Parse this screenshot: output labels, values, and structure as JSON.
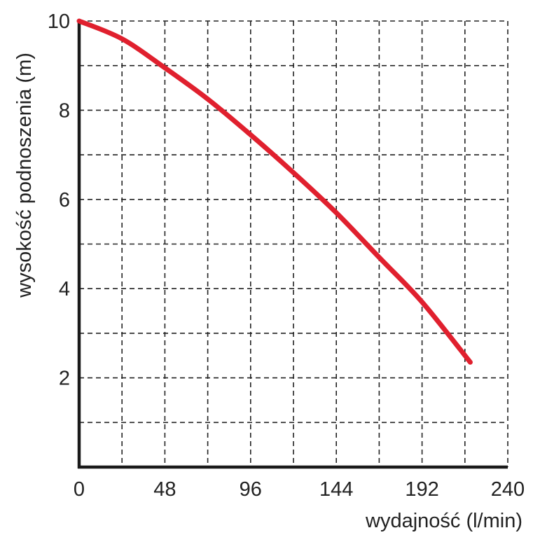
{
  "chart_data": {
    "type": "line",
    "xlabel": "wydajność (l/min)",
    "ylabel": "wysokość podnoszenia (m)",
    "xlim": [
      0,
      240
    ],
    "ylim": [
      0,
      10
    ],
    "x_ticks": [
      0,
      48,
      96,
      144,
      192,
      240
    ],
    "x_tick_labels": [
      "0",
      "48",
      "96",
      "144",
      "192",
      "240"
    ],
    "y_ticks": [
      2,
      4,
      6,
      8,
      10
    ],
    "y_tick_labels": [
      "2",
      "4",
      "6",
      "8",
      "10"
    ],
    "grid": true,
    "grid_style": "dashed",
    "x_minor_step": 24,
    "y_minor_step": 1,
    "series": [
      {
        "color": "#e0202e",
        "x": [
          0,
          24,
          48,
          72,
          96,
          120,
          144,
          168,
          192,
          219
        ],
        "y": [
          10.0,
          9.6,
          8.95,
          8.25,
          7.45,
          6.6,
          5.7,
          4.7,
          3.7,
          2.35
        ]
      }
    ]
  }
}
